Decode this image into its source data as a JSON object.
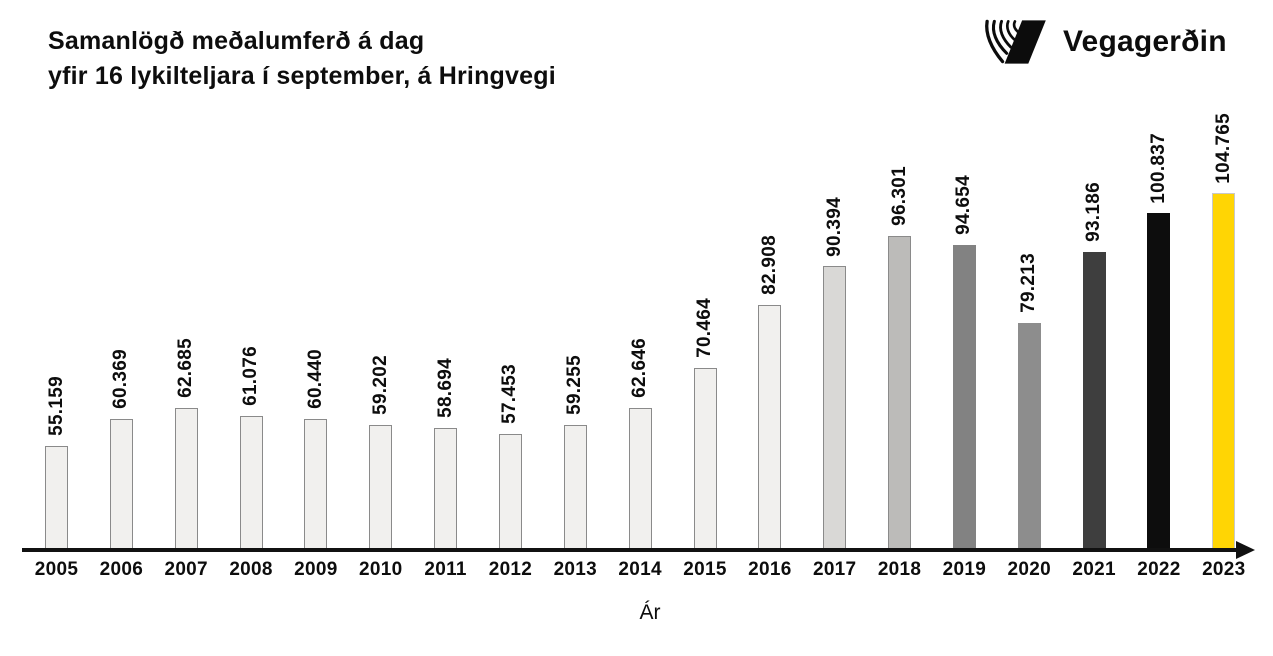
{
  "header": {
    "title_line1": "Samanlögð meðalumferð á dag",
    "title_line2": "yfir 16 lykilteljara í september, á Hringvegi",
    "brand": "Vegagerðin",
    "logo_icon": "vegagerdin-striped-v-mark"
  },
  "chart_data": {
    "type": "bar",
    "title": "Samanlögð meðalumferð á dag yfir 16 lykilteljara í september, á Hringvegi",
    "xlabel": "Ár",
    "ylabel": "",
    "categories": [
      "2005",
      "2006",
      "2007",
      "2008",
      "2009",
      "2010",
      "2011",
      "2012",
      "2013",
      "2014",
      "2015",
      "2016",
      "2017",
      "2018",
      "2019",
      "2020",
      "2021",
      "2022",
      "2023"
    ],
    "values": [
      55159,
      60369,
      62685,
      61076,
      60440,
      59202,
      58694,
      57453,
      59255,
      62646,
      70464,
      82908,
      90394,
      96301,
      94654,
      79213,
      93186,
      100837,
      104765
    ],
    "value_labels": [
      "55.159",
      "60.369",
      "62.685",
      "61.076",
      "60.440",
      "59.202",
      "58.694",
      "57.453",
      "59.255",
      "62.646",
      "70.464",
      "82.908",
      "90.394",
      "96.301",
      "94.654",
      "79.213",
      "93.186",
      "100.837",
      "104.765"
    ],
    "bar_fills": [
      "#f1f0ee",
      "#f1f0ee",
      "#f1f0ee",
      "#f1f0ee",
      "#f1f0ee",
      "#f1f0ee",
      "#f1f0ee",
      "#f1f0ee",
      "#f1f0ee",
      "#f1f0ee",
      "#f1f0ee",
      "#f1f0ee",
      "#d9d8d6",
      "#bcbbb9",
      "#828282",
      "#8d8d8d",
      "#3e3e3e",
      "#0d0d0d",
      "#ffd504"
    ],
    "bar_strokes": [
      "#8a8a8a",
      "#8a8a8a",
      "#8a8a8a",
      "#8a8a8a",
      "#8a8a8a",
      "#8a8a8a",
      "#8a8a8a",
      "#8a8a8a",
      "#8a8a8a",
      "#8a8a8a",
      "#8a8a8a",
      "#8a8a8a",
      "#8a8a8a",
      "#8a8a8a",
      "#828282",
      "#8d8d8d",
      "#3e3e3e",
      "#0d0d0d",
      "#c8c8c8"
    ],
    "ylim": [
      34700,
      106000
    ],
    "grid": false,
    "legend": "none",
    "value_label_rotation_deg": 90,
    "axis_color": "#111111",
    "highlight_color": "#ffd504"
  }
}
